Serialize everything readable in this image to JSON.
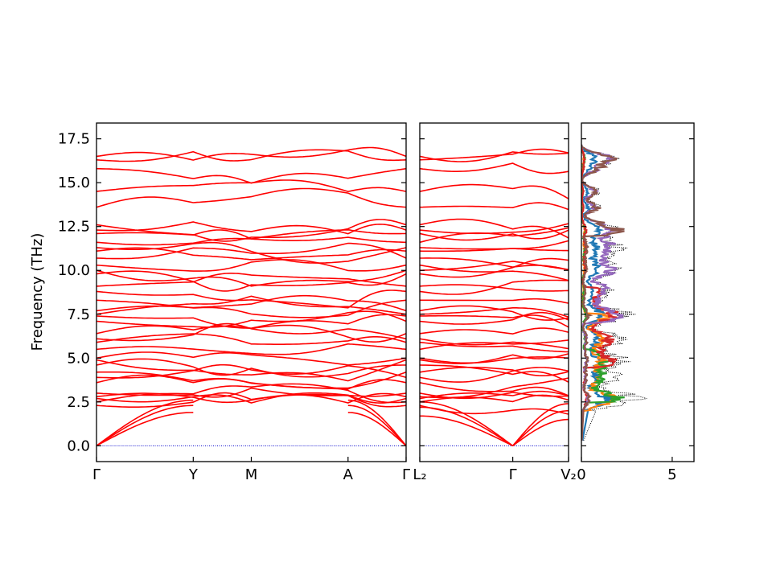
{
  "figure": {
    "ylabel": "Frequency (THz)"
  },
  "chart_data": [
    {
      "type": "line",
      "panel": "band-structure-1",
      "x_tick_labels": [
        "Γ",
        "Y",
        "M",
        "A",
        "Γ"
      ],
      "x_tick_positions": [
        0,
        1,
        1.6,
        2.6,
        3.2
      ],
      "xlim": [
        0,
        3.2
      ],
      "ylabel": "Frequency (THz)",
      "ylim": [
        -0.9,
        18.4
      ],
      "y_ticks": [
        0.0,
        2.5,
        5.0,
        7.5,
        10.0,
        12.5,
        15.0,
        17.5
      ],
      "y_tick_labels": [
        "0.0",
        "2.5",
        "5.0",
        "7.5",
        "10.0",
        "12.5",
        "15.0",
        "17.5"
      ],
      "line_color": "#ff0000",
      "zero_line_color": "#0000cc",
      "band_frequencies_at_gamma": [
        0.0,
        0.0,
        0.0,
        2.3,
        2.5,
        2.7,
        2.8,
        3.0,
        3.6,
        3.9,
        4.2,
        4.6,
        4.9,
        5.0,
        5.5,
        5.9,
        6.1,
        6.4,
        7.1,
        7.4,
        7.5,
        7.7,
        8.3,
        8.8,
        9.1,
        9.8,
        10.0,
        10.3,
        10.7,
        11.1,
        11.3,
        11.6,
        12.1,
        12.3,
        12.6,
        13.6,
        14.5,
        15.8,
        16.3,
        16.5
      ]
    },
    {
      "type": "line",
      "panel": "band-structure-2",
      "x_tick_labels": [
        "L₂",
        "Γ",
        "V₂"
      ],
      "x_tick_positions": [
        0,
        1,
        1.6
      ],
      "xlim": [
        0,
        1.6
      ],
      "ylim": [
        -0.9,
        18.4
      ],
      "line_color": "#ff0000",
      "zero_line_color": "#0000cc"
    },
    {
      "type": "line",
      "panel": "density-of-states",
      "x_tick_labels": [
        "0",
        "5"
      ],
      "x_ticks": [
        0,
        5
      ],
      "xlim": [
        0,
        6.2
      ],
      "ylim": [
        -0.9,
        18.4
      ],
      "series": [
        {
          "color": "#000000",
          "style": "dotted"
        },
        {
          "color": "#1f77b4"
        },
        {
          "color": "#ff7f0e"
        },
        {
          "color": "#2ca02c"
        },
        {
          "color": "#d62728"
        },
        {
          "color": "#9467bd"
        },
        {
          "color": "#8c564b"
        }
      ]
    }
  ]
}
